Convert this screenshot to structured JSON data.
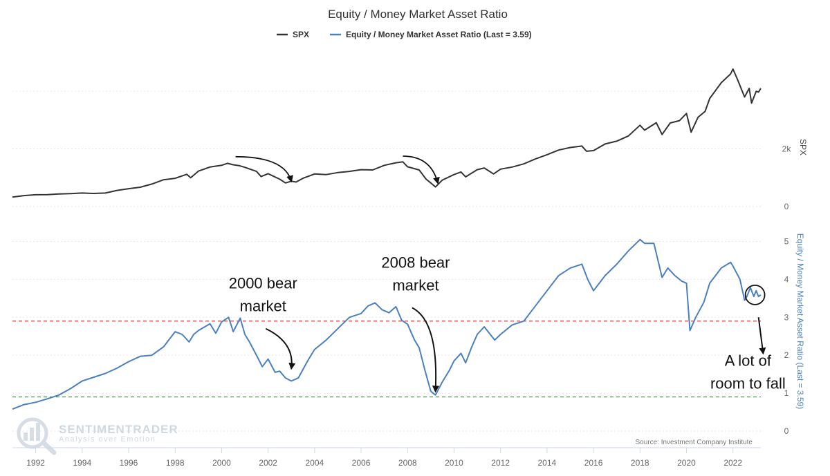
{
  "chart_data": {
    "type": "line",
    "title": "Equity / Money Market Asset Ratio",
    "source": "Source: Investment Company Institute",
    "watermark": {
      "name": "SENTIMENTRADER",
      "tagline": "Analysis over Emotion"
    },
    "x": {
      "ticks": [
        "1992",
        "1994",
        "1996",
        "1998",
        "2000",
        "2002",
        "2004",
        "2006",
        "2008",
        "2010",
        "2012",
        "2014",
        "2016",
        "2018",
        "2020",
        "2022"
      ],
      "range": [
        1991.0,
        2023.2
      ]
    },
    "legend": {
      "position": "top-center",
      "items": [
        "SPX",
        "Equity / Money Market Asset Ratio (Last = 3.59)"
      ]
    },
    "panels": [
      {
        "name": "SPX",
        "axis_title": "SPX",
        "axis_position": "right",
        "tick_labels": [
          "0",
          "2k"
        ],
        "ylim": [
          0,
          5200
        ],
        "color": "#333333",
        "series": [
          {
            "name": "SPX",
            "points": [
              [
                1991.0,
                330
              ],
              [
                1991.5,
                380
              ],
              [
                1992.0,
                410
              ],
              [
                1992.5,
                415
              ],
              [
                1993.0,
                435
              ],
              [
                1993.5,
                450
              ],
              [
                1994.0,
                470
              ],
              [
                1994.5,
                455
              ],
              [
                1995.0,
                470
              ],
              [
                1995.5,
                560
              ],
              [
                1996.0,
                620
              ],
              [
                1996.5,
                670
              ],
              [
                1997.0,
                780
              ],
              [
                1997.5,
                930
              ],
              [
                1998.0,
                980
              ],
              [
                1998.5,
                1120
              ],
              [
                1998.67,
                1000
              ],
              [
                1999.0,
                1230
              ],
              [
                1999.5,
                1370
              ],
              [
                2000.0,
                1430
              ],
              [
                2000.25,
                1500
              ],
              [
                2000.5,
                1450
              ],
              [
                2000.75,
                1420
              ],
              [
                2001.0,
                1360
              ],
              [
                2001.5,
                1220
              ],
              [
                2001.7,
                1040
              ],
              [
                2002.0,
                1140
              ],
              [
                2002.5,
                950
              ],
              [
                2002.75,
                820
              ],
              [
                2003.0,
                880
              ],
              [
                2003.2,
                850
              ],
              [
                2003.5,
                980
              ],
              [
                2004.0,
                1130
              ],
              [
                2004.5,
                1110
              ],
              [
                2005.0,
                1180
              ],
              [
                2005.5,
                1220
              ],
              [
                2006.0,
                1280
              ],
              [
                2006.5,
                1270
              ],
              [
                2007.0,
                1430
              ],
              [
                2007.5,
                1520
              ],
              [
                2007.8,
                1550
              ],
              [
                2008.0,
                1380
              ],
              [
                2008.5,
                1270
              ],
              [
                2008.8,
                950
              ],
              [
                2009.0,
                820
              ],
              [
                2009.2,
                680
              ],
              [
                2009.5,
                920
              ],
              [
                2010.0,
                1110
              ],
              [
                2010.3,
                1200
              ],
              [
                2010.5,
                1030
              ],
              [
                2011.0,
                1280
              ],
              [
                2011.3,
                1340
              ],
              [
                2011.7,
                1130
              ],
              [
                2012.0,
                1300
              ],
              [
                2012.5,
                1370
              ],
              [
                2013.0,
                1480
              ],
              [
                2013.5,
                1650
              ],
              [
                2014.0,
                1800
              ],
              [
                2014.5,
                1960
              ],
              [
                2015.0,
                2050
              ],
              [
                2015.5,
                2100
              ],
              [
                2015.7,
                1920
              ],
              [
                2016.0,
                1940
              ],
              [
                2016.5,
                2170
              ],
              [
                2017.0,
                2270
              ],
              [
                2017.5,
                2450
              ],
              [
                2018.0,
                2820
              ],
              [
                2018.2,
                2650
              ],
              [
                2018.7,
                2910
              ],
              [
                2018.95,
                2500
              ],
              [
                2019.3,
                2900
              ],
              [
                2019.7,
                2980
              ],
              [
                2020.0,
                3230
              ],
              [
                2020.2,
                2580
              ],
              [
                2020.5,
                3100
              ],
              [
                2020.8,
                3300
              ],
              [
                2021.0,
                3750
              ],
              [
                2021.5,
                4300
              ],
              [
                2021.9,
                4600
              ],
              [
                2022.0,
                4770
              ],
              [
                2022.2,
                4400
              ],
              [
                2022.5,
                3800
              ],
              [
                2022.7,
                4100
              ],
              [
                2022.8,
                3590
              ],
              [
                2023.0,
                4000
              ],
              [
                2023.1,
                3970
              ],
              [
                2023.2,
                4100
              ]
            ]
          }
        ],
        "annotation_arrows": [
          {
            "label": "",
            "from": [
              2000.6,
              1730
            ],
            "to": [
              2003.0,
              880
            ]
          },
          {
            "label": "",
            "from": [
              2007.8,
              1750
            ],
            "to": [
              2009.3,
              820
            ]
          }
        ]
      },
      {
        "name": "Equity / Money Market Asset Ratio",
        "axis_title": "Equity / Money Market Asset Ratio (Last = 3.59)",
        "axis_position": "right",
        "tick_labels": [
          "0",
          "1",
          "2",
          "3",
          "4",
          "5"
        ],
        "ylim": [
          0,
          5.5
        ],
        "color": "#4a7fc0",
        "last_value": 3.59,
        "reference_lines": [
          {
            "color": "#dd3333",
            "style": "dashed",
            "y": 2.9
          },
          {
            "color": "#2e8b2e",
            "style": "dashed",
            "y": 0.9
          }
        ],
        "series": [
          {
            "name": "Equity / Money Market Asset Ratio (Last = 3.59)",
            "points": [
              [
                1991.0,
                0.58
              ],
              [
                1991.5,
                0.7
              ],
              [
                1992.0,
                0.76
              ],
              [
                1992.5,
                0.85
              ],
              [
                1993.0,
                0.95
              ],
              [
                1993.5,
                1.12
              ],
              [
                1994.0,
                1.32
              ],
              [
                1994.5,
                1.42
              ],
              [
                1995.0,
                1.52
              ],
              [
                1995.5,
                1.66
              ],
              [
                1996.0,
                1.83
              ],
              [
                1996.5,
                1.97
              ],
              [
                1997.0,
                2.0
              ],
              [
                1997.5,
                2.22
              ],
              [
                1998.0,
                2.62
              ],
              [
                1998.3,
                2.55
              ],
              [
                1998.6,
                2.35
              ],
              [
                1998.8,
                2.55
              ],
              [
                1999.0,
                2.65
              ],
              [
                1999.5,
                2.83
              ],
              [
                1999.75,
                2.58
              ],
              [
                2000.0,
                2.88
              ],
              [
                2000.3,
                3.0
              ],
              [
                2000.5,
                2.62
              ],
              [
                2000.8,
                2.98
              ],
              [
                2001.0,
                2.55
              ],
              [
                2001.2,
                2.35
              ],
              [
                2001.5,
                2.0
              ],
              [
                2001.75,
                1.7
              ],
              [
                2002.0,
                1.9
              ],
              [
                2002.3,
                1.55
              ],
              [
                2002.5,
                1.58
              ],
              [
                2002.75,
                1.4
              ],
              [
                2003.0,
                1.32
              ],
              [
                2003.3,
                1.4
              ],
              [
                2003.7,
                1.85
              ],
              [
                2004.0,
                2.15
              ],
              [
                2004.5,
                2.4
              ],
              [
                2005.0,
                2.7
              ],
              [
                2005.5,
                3.0
              ],
              [
                2006.0,
                3.1
              ],
              [
                2006.3,
                3.3
              ],
              [
                2006.6,
                3.38
              ],
              [
                2006.9,
                3.2
              ],
              [
                2007.2,
                3.12
              ],
              [
                2007.5,
                3.28
              ],
              [
                2007.75,
                2.92
              ],
              [
                2008.0,
                2.82
              ],
              [
                2008.3,
                2.4
              ],
              [
                2008.5,
                2.2
              ],
              [
                2008.75,
                1.6
              ],
              [
                2009.0,
                1.05
              ],
              [
                2009.2,
                0.95
              ],
              [
                2009.5,
                1.3
              ],
              [
                2009.8,
                1.6
              ],
              [
                2010.0,
                1.85
              ],
              [
                2010.3,
                2.05
              ],
              [
                2010.5,
                1.8
              ],
              [
                2010.75,
                2.2
              ],
              [
                2011.0,
                2.55
              ],
              [
                2011.3,
                2.75
              ],
              [
                2011.75,
                2.4
              ],
              [
                2012.0,
                2.55
              ],
              [
                2012.5,
                2.8
              ],
              [
                2013.0,
                2.9
              ],
              [
                2013.5,
                3.3
              ],
              [
                2014.0,
                3.7
              ],
              [
                2014.5,
                4.1
              ],
              [
                2015.0,
                4.3
              ],
              [
                2015.5,
                4.4
              ],
              [
                2015.75,
                4.0
              ],
              [
                2016.0,
                3.7
              ],
              [
                2016.5,
                4.1
              ],
              [
                2017.0,
                4.4
              ],
              [
                2017.5,
                4.75
              ],
              [
                2018.0,
                5.05
              ],
              [
                2018.2,
                4.95
              ],
              [
                2018.6,
                4.95
              ],
              [
                2018.95,
                4.05
              ],
              [
                2019.2,
                4.3
              ],
              [
                2019.5,
                4.1
              ],
              [
                2019.8,
                3.95
              ],
              [
                2020.0,
                3.9
              ],
              [
                2020.15,
                2.65
              ],
              [
                2020.4,
                3.0
              ],
              [
                2020.75,
                3.4
              ],
              [
                2021.0,
                3.9
              ],
              [
                2021.5,
                4.3
              ],
              [
                2021.9,
                4.45
              ],
              [
                2022.0,
                4.35
              ],
              [
                2022.3,
                4.0
              ],
              [
                2022.5,
                3.45
              ],
              [
                2022.6,
                3.55
              ],
              [
                2022.75,
                3.78
              ],
              [
                2022.9,
                3.55
              ],
              [
                2023.0,
                3.7
              ],
              [
                2023.1,
                3.55
              ],
              [
                2023.2,
                3.59
              ]
            ]
          }
        ],
        "annotations": [
          {
            "text_lines": [
              "2000 bear",
              "market"
            ],
            "arrow_from": [
              2001.9,
              2.7
            ],
            "arrow_to": [
              2003.0,
              1.65
            ]
          },
          {
            "text_lines": [
              "2008 bear",
              "market"
            ],
            "arrow_from": [
              2008.2,
              3.25
            ],
            "arrow_to": [
              2009.2,
              1.05
            ]
          },
          {
            "text_lines": [
              "A lot of",
              "room to fall"
            ],
            "arrow_from": [
              2023.1,
              3.0
            ],
            "arrow_to": [
              2023.3,
              2.05
            ]
          }
        ],
        "highlight_circle": {
          "x": 2022.95,
          "y": 3.59
        }
      }
    ]
  }
}
